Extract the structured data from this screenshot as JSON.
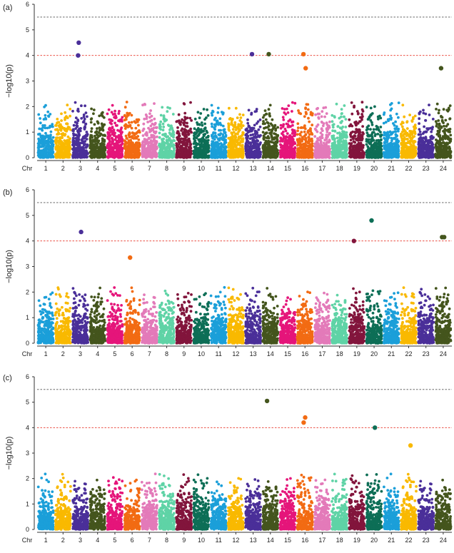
{
  "chart_data": [
    {
      "type": "scatter",
      "panel_label": "(a)",
      "ylabel": "−log10(p)",
      "ylim": [
        0,
        6
      ],
      "yticks": [
        "0",
        "1",
        "2",
        "3",
        "4",
        "5",
        "6"
      ],
      "chr_axis_label": "Chr",
      "chromosomes": [
        "1",
        "2",
        "3",
        "4",
        "5",
        "6",
        "7",
        "8",
        "9",
        "10",
        "11",
        "12",
        "13",
        "14",
        "15",
        "16",
        "17",
        "18",
        "19",
        "20",
        "21",
        "22",
        "23",
        "24"
      ],
      "thresholds": [
        {
          "value": 5.5,
          "color": "#555555"
        },
        {
          "value": 4.0,
          "color": "#e8372a"
        }
      ],
      "top_hits": [
        {
          "chr": "3",
          "y": 4.0
        },
        {
          "chr": "3",
          "y": 4.5
        },
        {
          "chr": "13",
          "y": 4.05
        },
        {
          "chr": "14",
          "y": 4.05
        },
        {
          "chr": "16",
          "y": 4.05
        },
        {
          "chr": "16",
          "y": 3.5
        },
        {
          "chr": "24",
          "y": 3.5
        }
      ]
    },
    {
      "type": "scatter",
      "panel_label": "(b)",
      "ylabel": "−log10(p)",
      "ylim": [
        0,
        6
      ],
      "yticks": [
        "0",
        "1",
        "2",
        "3",
        "4",
        "5",
        "6"
      ],
      "chr_axis_label": "Chr",
      "chromosomes": [
        "1",
        "2",
        "3",
        "4",
        "5",
        "6",
        "7",
        "8",
        "9",
        "10",
        "11",
        "12",
        "13",
        "14",
        "15",
        "16",
        "17",
        "18",
        "19",
        "20",
        "21",
        "22",
        "23",
        "24"
      ],
      "thresholds": [
        {
          "value": 5.5,
          "color": "#555555"
        },
        {
          "value": 4.0,
          "color": "#e8372a"
        }
      ],
      "top_hits": [
        {
          "chr": "3",
          "y": 4.35
        },
        {
          "chr": "6",
          "y": 3.35
        },
        {
          "chr": "19",
          "y": 4.0
        },
        {
          "chr": "20",
          "y": 4.8
        },
        {
          "chr": "24",
          "y": 4.15
        },
        {
          "chr": "24",
          "y": 4.15
        }
      ]
    },
    {
      "type": "scatter",
      "panel_label": "(c)",
      "ylabel": "−log10(p)",
      "ylim": [
        0,
        6
      ],
      "yticks": [
        "0",
        "1",
        "2",
        "3",
        "4",
        "5",
        "6"
      ],
      "chr_axis_label": "Chr",
      "chromosomes": [
        "1",
        "2",
        "3",
        "4",
        "5",
        "6",
        "7",
        "8",
        "9",
        "10",
        "11",
        "12",
        "13",
        "14",
        "15",
        "16",
        "17",
        "18",
        "19",
        "20",
        "21",
        "22",
        "23",
        "24"
      ],
      "thresholds": [
        {
          "value": 5.5,
          "color": "#555555"
        },
        {
          "value": 4.0,
          "color": "#e8372a"
        }
      ],
      "top_hits": [
        {
          "chr": "14",
          "y": 5.05
        },
        {
          "chr": "16",
          "y": 4.4
        },
        {
          "chr": "16",
          "y": 4.2
        },
        {
          "chr": "20",
          "y": 4.0
        },
        {
          "chr": "22",
          "y": 3.3
        }
      ]
    }
  ],
  "chr_colors": [
    "#1b9fd9",
    "#f9b900",
    "#4a2f99",
    "#44551d",
    "#e5157a",
    "#f26b13",
    "#e37ab9",
    "#5fd3a6",
    "#82153c",
    "#0d6e56"
  ]
}
